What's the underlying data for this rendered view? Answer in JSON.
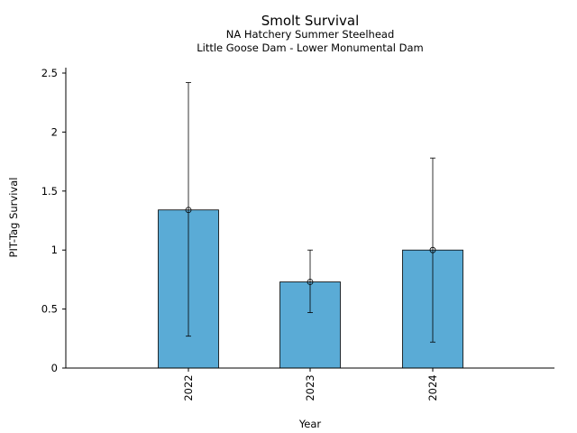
{
  "chart_data": {
    "type": "bar",
    "title": "Smolt Survival",
    "subtitle_lines": [
      "NA Hatchery Summer Steelhead",
      "Little Goose Dam - Lower Monumental Dam"
    ],
    "xlabel": "Year",
    "ylabel": "PIT-Tag Survival",
    "categories": [
      "2022",
      "2023",
      "2024"
    ],
    "values": [
      1.34,
      0.73,
      1.0
    ],
    "error_low": [
      0.27,
      0.47,
      0.22
    ],
    "error_high": [
      2.42,
      1.0,
      1.78
    ],
    "ylim": [
      0,
      2.55
    ],
    "yticks": [
      0,
      0.5,
      1,
      1.5,
      2,
      2.5
    ],
    "ytick_labels": [
      "0",
      "0.5",
      "1",
      "1.5",
      "2",
      "2.5"
    ],
    "bar_color": "#5aabd6",
    "edge_color": "#000000",
    "grid": false,
    "legend": false
  }
}
